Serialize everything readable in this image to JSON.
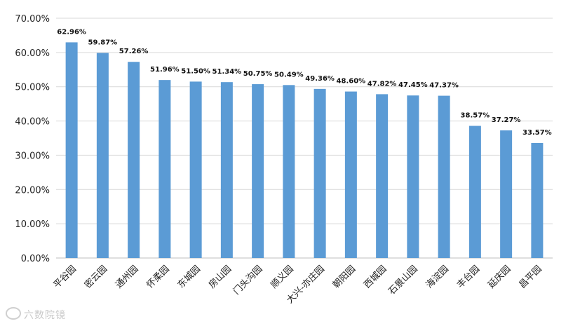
{
  "chart_data": {
    "type": "bar",
    "title": "",
    "xlabel": "",
    "ylabel": "",
    "categories": [
      "平谷园",
      "密云园",
      "通州园",
      "怀柔园",
      "东城园",
      "房山园",
      "门头沟园",
      "顺义园",
      "大兴-亦庄园",
      "朝阳园",
      "西城园",
      "石景山园",
      "海淀园",
      "丰台园",
      "延庆园",
      "昌平园"
    ],
    "values": [
      62.96,
      59.87,
      57.26,
      51.96,
      51.5,
      51.34,
      50.75,
      50.49,
      49.36,
      48.6,
      47.82,
      47.45,
      47.37,
      38.57,
      37.27,
      33.57
    ],
    "data_labels": [
      "62.96%",
      "59.87%",
      "57.26%",
      "51.96%",
      "51.50%",
      "51.34%",
      "50.75%",
      "50.49%",
      "49.36%",
      "48.60%",
      "47.82%",
      "47.45%",
      "47.37%",
      "38.57%",
      "37.27%",
      "33.57%"
    ],
    "y_ticks": [
      0,
      10,
      20,
      30,
      40,
      50,
      60,
      70
    ],
    "y_tick_labels": [
      "0.00%",
      "10.00%",
      "20.00%",
      "30.00%",
      "40.00%",
      "50.00%",
      "60.00%",
      "70.00%"
    ],
    "ylim": [
      0,
      70
    ],
    "grid": true,
    "legend": "none",
    "bar_color": "#5b9bd5",
    "grid_color": "#d9d9d9"
  },
  "watermark": {
    "text": "六数院镜"
  }
}
